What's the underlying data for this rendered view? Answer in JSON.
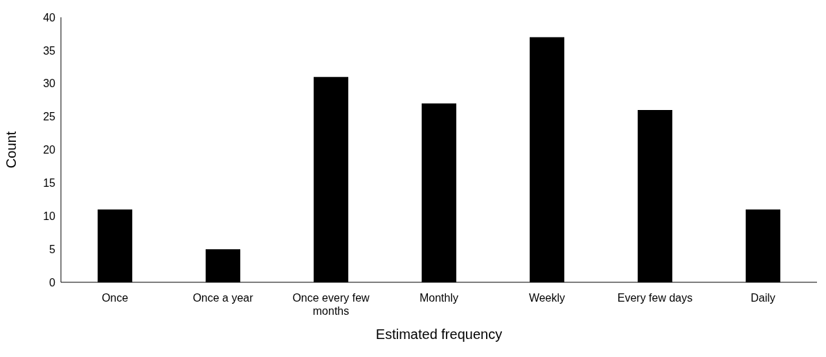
{
  "chart_data": {
    "type": "bar",
    "categories": [
      "Once",
      "Once a year",
      "Once every few months",
      "Monthly",
      "Weekly",
      "Every few days",
      "Daily"
    ],
    "values": [
      11,
      5,
      31,
      27,
      37,
      26,
      11
    ],
    "color": "#000000",
    "xlabel": "Estimated frequency",
    "ylabel": "Count",
    "ylim": [
      0,
      40
    ],
    "yticks": [
      0,
      5,
      10,
      15,
      20,
      25,
      30,
      35,
      40
    ],
    "grid": false
  }
}
